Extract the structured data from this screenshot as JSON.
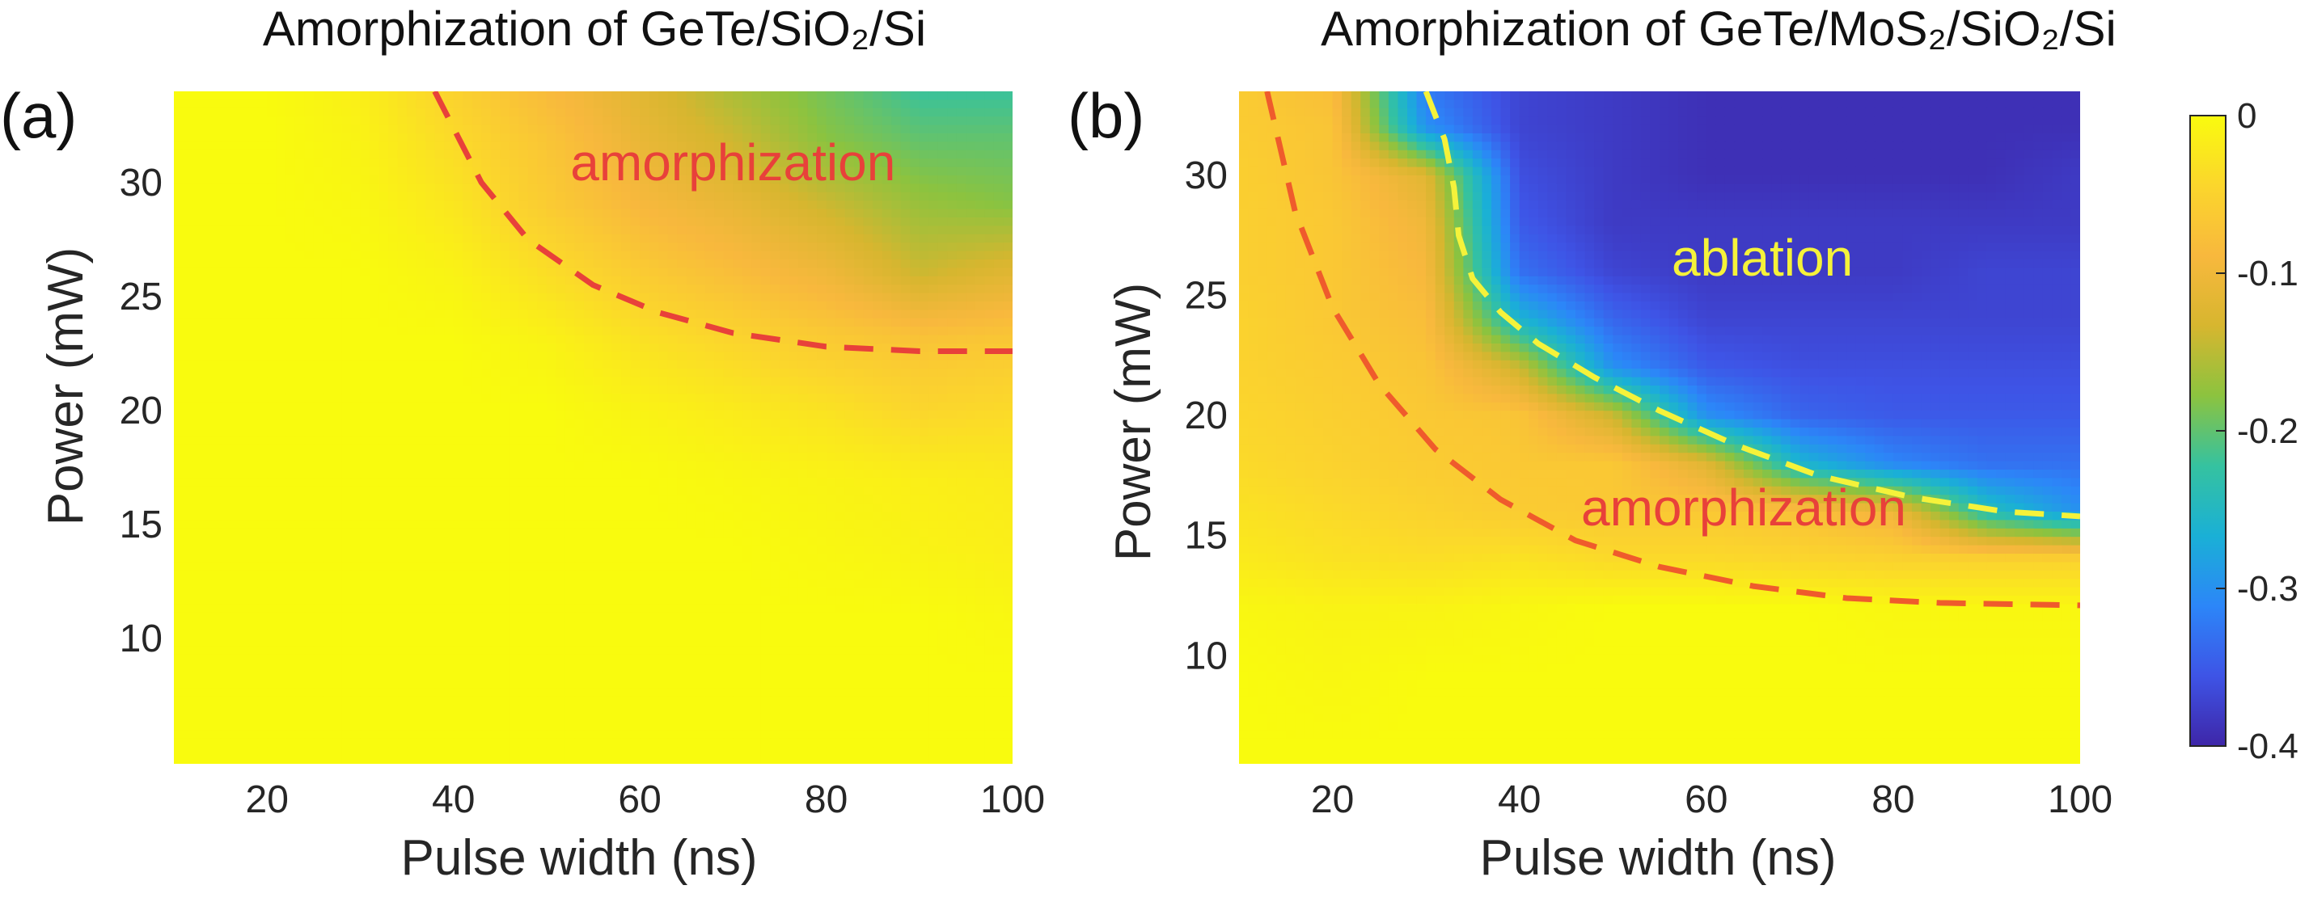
{
  "chart_data": [
    {
      "type": "heatmap",
      "panel_label": "(a)",
      "title": "Amorphization of GeTe/SiO₂/Si",
      "xlabel": "Pulse width (ns)",
      "ylabel": "Power (mW)",
      "xlim": [
        10,
        100
      ],
      "ylim": [
        4.5,
        34
      ],
      "xticks": [
        20,
        40,
        60,
        80,
        100
      ],
      "yticks": [
        10,
        15,
        20,
        25,
        30
      ],
      "grid": false,
      "colormap": [
        "#3e26a8",
        "#3e54e6",
        "#2c86f8",
        "#1ab0d6",
        "#35c2a0",
        "#8cc33f",
        "#d7b62f",
        "#f8b83d",
        "#fbd62c",
        "#f9fb0e"
      ],
      "color_range": [
        -0.4,
        0
      ],
      "x": [
        10,
        20,
        30,
        40,
        50,
        60,
        70,
        80,
        90,
        100
      ],
      "y": [
        5,
        8,
        11,
        14,
        17,
        20,
        23,
        26,
        29,
        32,
        34
      ],
      "z": [
        [
          0,
          0,
          0,
          0,
          0,
          0,
          0,
          0,
          0,
          0
        ],
        [
          0,
          0,
          0,
          0,
          0,
          0,
          0,
          0,
          0,
          0
        ],
        [
          0,
          0,
          0,
          0,
          0,
          0,
          0,
          0,
          0,
          -0.005
        ],
        [
          0,
          0,
          0,
          0,
          0,
          0,
          0,
          -0.005,
          -0.01,
          -0.015
        ],
        [
          0,
          0,
          0,
          0,
          0,
          0,
          -0.005,
          -0.01,
          -0.015,
          -0.02
        ],
        [
          0,
          0,
          0,
          0,
          0,
          -0.01,
          -0.02,
          -0.03,
          -0.045,
          -0.04
        ],
        [
          0,
          0,
          0,
          0,
          -0.01,
          -0.03,
          -0.045,
          -0.06,
          -0.07,
          -0.065
        ],
        [
          0,
          0,
          0,
          -0.01,
          -0.035,
          -0.06,
          -0.08,
          -0.1,
          -0.14,
          -0.12
        ],
        [
          0,
          0,
          -0.005,
          -0.025,
          -0.06,
          -0.09,
          -0.11,
          -0.14,
          -0.17,
          -0.18
        ],
        [
          0,
          0,
          -0.01,
          -0.04,
          -0.07,
          -0.11,
          -0.14,
          -0.18,
          -0.2,
          -0.2
        ],
        [
          0,
          0,
          -0.015,
          -0.05,
          -0.085,
          -0.12,
          -0.16,
          -0.19,
          -0.22,
          -0.22
        ]
      ],
      "boundaries": [
        {
          "label": "amorphization",
          "color": "#e8413a",
          "x": [
            38,
            43,
            48,
            55,
            62,
            70,
            80,
            90,
            100
          ],
          "y": [
            34,
            30,
            27.5,
            25.5,
            24.3,
            23.4,
            22.8,
            22.6,
            22.6
          ]
        }
      ],
      "annotations": [
        {
          "text": "amorphization",
          "color": "#e8413a",
          "x": 70,
          "y": 30.7
        }
      ]
    },
    {
      "type": "heatmap",
      "panel_label": "(b)",
      "title": "Amorphization of GeTe/MoS₂/SiO₂/Si",
      "xlabel": "Pulse width (ns)",
      "ylabel": "Power (mW)",
      "xlim": [
        10,
        100
      ],
      "ylim": [
        5.5,
        33.5
      ],
      "xticks": [
        20,
        40,
        60,
        80,
        100
      ],
      "yticks": [
        10,
        15,
        20,
        25,
        30
      ],
      "grid": false,
      "colormap": [
        "#3e26a8",
        "#3e54e6",
        "#2c86f8",
        "#1ab0d6",
        "#35c2a0",
        "#8cc33f",
        "#d7b62f",
        "#f8b83d",
        "#fbd62c",
        "#f9fb0e"
      ],
      "color_range": [
        -0.4,
        0
      ],
      "x": [
        10,
        20,
        30,
        40,
        50,
        60,
        70,
        80,
        90,
        100
      ],
      "y": [
        6,
        9,
        12,
        14,
        16,
        18,
        20,
        22,
        24,
        26,
        28,
        30,
        32,
        33.5
      ],
      "z": [
        [
          0,
          0,
          0,
          0,
          0,
          0,
          0,
          0,
          0,
          0
        ],
        [
          0,
          -0.005,
          0,
          0,
          0,
          0,
          0,
          0,
          0,
          0
        ],
        [
          -0.005,
          -0.01,
          -0.01,
          -0.005,
          0,
          0,
          0,
          -0.005,
          -0.005,
          -0.005
        ],
        [
          -0.02,
          -0.03,
          -0.035,
          -0.03,
          -0.04,
          -0.04,
          -0.045,
          -0.05,
          -0.05,
          -0.05
        ],
        [
          -0.03,
          -0.04,
          -0.05,
          -0.06,
          -0.065,
          -0.065,
          -0.075,
          -0.1,
          -0.24,
          -0.3
        ],
        [
          -0.04,
          -0.05,
          -0.06,
          -0.065,
          -0.065,
          -0.12,
          -0.26,
          -0.31,
          -0.33,
          -0.33
        ],
        [
          -0.045,
          -0.055,
          -0.065,
          -0.07,
          -0.14,
          -0.3,
          -0.34,
          -0.35,
          -0.35,
          -0.35
        ],
        [
          -0.05,
          -0.06,
          -0.07,
          -0.14,
          -0.3,
          -0.35,
          -0.36,
          -0.36,
          -0.36,
          -0.36
        ],
        [
          -0.05,
          -0.065,
          -0.08,
          -0.26,
          -0.34,
          -0.37,
          -0.37,
          -0.37,
          -0.37,
          -0.37
        ],
        [
          -0.055,
          -0.065,
          -0.09,
          -0.33,
          -0.37,
          -0.38,
          -0.38,
          -0.38,
          -0.37,
          -0.37
        ],
        [
          -0.055,
          -0.065,
          -0.1,
          -0.35,
          -0.38,
          -0.38,
          -0.38,
          -0.38,
          -0.38,
          -0.38
        ],
        [
          -0.055,
          -0.07,
          -0.12,
          -0.36,
          -0.38,
          -0.39,
          -0.39,
          -0.39,
          -0.39,
          -0.38
        ],
        [
          -0.06,
          -0.07,
          -0.3,
          -0.37,
          -0.38,
          -0.39,
          -0.39,
          -0.39,
          -0.39,
          -0.39
        ],
        [
          -0.06,
          -0.08,
          -0.32,
          -0.37,
          -0.38,
          -0.39,
          -0.39,
          -0.39,
          -0.39,
          -0.39
        ]
      ],
      "boundaries": [
        {
          "label": "amorphization",
          "color": "#ef5b2c",
          "x": [
            13,
            16,
            20,
            25,
            31,
            38,
            46,
            55,
            65,
            75,
            85,
            100
          ],
          "y": [
            33.5,
            28.5,
            24.5,
            21.3,
            18.6,
            16.5,
            14.8,
            13.7,
            12.9,
            12.4,
            12.2,
            12.1
          ]
        },
        {
          "label": "ablation",
          "color": "#f5f23a",
          "x": [
            30,
            32,
            33,
            33.5,
            35,
            38,
            42,
            48,
            55,
            63,
            72,
            82,
            92,
            100
          ],
          "y": [
            33.5,
            31.5,
            29.5,
            27.5,
            25.7,
            24.3,
            23.0,
            21.6,
            20.2,
            18.8,
            17.5,
            16.6,
            16.0,
            15.8
          ]
        }
      ],
      "annotations": [
        {
          "text": "ablation",
          "color": "#f5f23a",
          "x": 66,
          "y": 26.4
        },
        {
          "text": "amorphization",
          "color": "#e8413a",
          "x": 64,
          "y": 16
        }
      ]
    }
  ],
  "colorbar": {
    "ticks": [
      0,
      -0.1,
      -0.2,
      -0.3,
      -0.4
    ],
    "tick_labels": [
      "0",
      "-0.1",
      "-0.2",
      "-0.3",
      "-0.4"
    ],
    "range": [
      -0.4,
      0
    ]
  }
}
